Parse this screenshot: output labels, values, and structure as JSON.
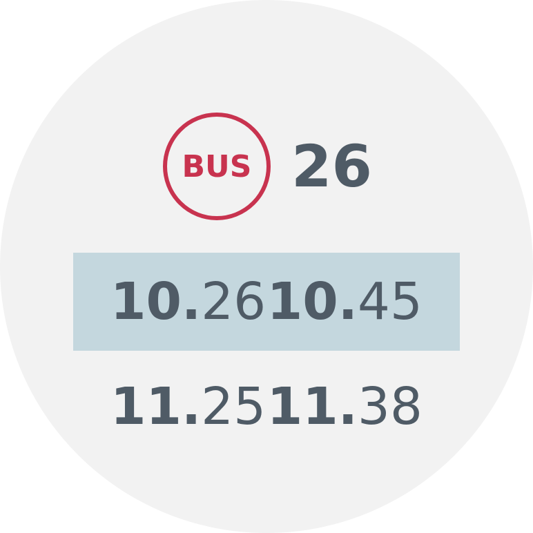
{
  "header": {
    "badge_label": "BUS",
    "route_number": "26"
  },
  "departures": [
    {
      "hour": "10.",
      "minute": "26"
    },
    {
      "hour": "10.",
      "minute": "45"
    },
    {
      "hour": "11.",
      "minute": "25"
    },
    {
      "hour": "11.",
      "minute": "38"
    }
  ],
  "colors": {
    "accent": "#c8334f",
    "text": "#4f5b66",
    "highlight_row": "#c4d7de",
    "face_background": "#f2f2f2"
  }
}
